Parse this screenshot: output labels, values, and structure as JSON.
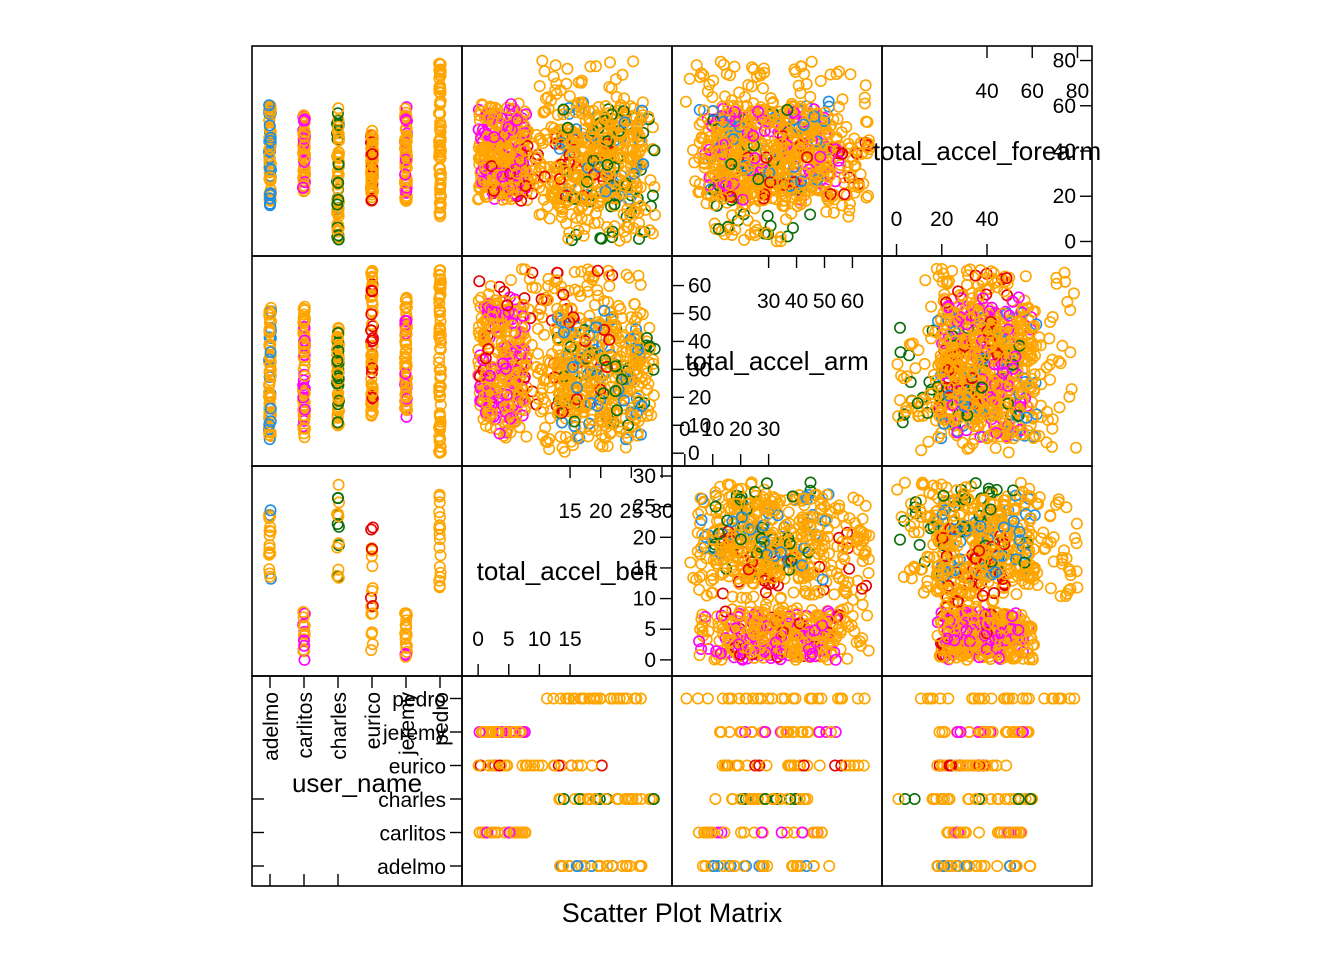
{
  "chart_data": {
    "type": "scatter",
    "title": "",
    "caption": "Scatter Plot Matrix",
    "variables": [
      {
        "key": "total_accel_forearm",
        "label": "total_accel_forearm",
        "range": [
          -2,
          82
        ],
        "ticks_a": [
          0,
          20,
          40
        ],
        "ticks_b": [
          40,
          60,
          80
        ],
        "ticks_right": [
          0,
          20,
          40,
          60,
          80
        ]
      },
      {
        "key": "total_accel_arm",
        "label": "total_accel_arm",
        "range": [
          -1,
          67
        ],
        "ticks_a": [
          0,
          10,
          20,
          30
        ],
        "ticks_b": [
          30,
          40,
          50,
          60
        ],
        "ticks_left": [
          0,
          10,
          20,
          30,
          40,
          50,
          60
        ]
      },
      {
        "key": "total_accel_belt",
        "label": "total_accel_belt",
        "range": [
          -1,
          30
        ],
        "ticks_a": [
          0,
          5,
          10,
          15
        ],
        "ticks_b": [
          15,
          20,
          25,
          30
        ],
        "ticks_right": [
          0,
          5,
          10,
          15,
          20,
          25,
          30
        ]
      },
      {
        "key": "user_name",
        "label": "user_name",
        "levels": [
          "adelmo",
          "carlitos",
          "charles",
          "eurico",
          "jeremy",
          "pedro"
        ]
      }
    ],
    "series_colors": {
      "adelmo": "#1f8fe6",
      "carlitos": "#ff00ff",
      "charles": "#0a6e0a",
      "eurico": "#e60000",
      "jeremy": "#ff00ff",
      "pedro": "#ffa500"
    },
    "users": [
      {
        "name": "adelmo",
        "forearm": [
          18,
          62
        ],
        "forearm_low": [
          16,
          21
        ],
        "arm": [
          5,
          52
        ],
        "belt": [
          13,
          27
        ]
      },
      {
        "name": "carlitos",
        "forearm": [
          22,
          56
        ],
        "arm": [
          5,
          53
        ],
        "belt": [
          0,
          8
        ]
      },
      {
        "name": "charles",
        "forearm": [
          0,
          60
        ],
        "arm": [
          10,
          45
        ],
        "belt": [
          13,
          29
        ]
      },
      {
        "name": "eurico",
        "forearm": [
          18,
          49
        ],
        "arm": [
          13,
          66
        ],
        "belt": [
          0,
          22
        ]
      },
      {
        "name": "jeremy",
        "forearm": [
          18,
          61
        ],
        "arm": [
          12,
          56
        ],
        "belt": [
          0,
          8
        ]
      },
      {
        "name": "pedro",
        "forearm": [
          10,
          80
        ],
        "arm": [
          0,
          66
        ],
        "belt": [
          10,
          27
        ]
      }
    ],
    "point_counts": {
      "strip": 70,
      "cloud": 900,
      "forearm_belt_band": 26
    }
  }
}
